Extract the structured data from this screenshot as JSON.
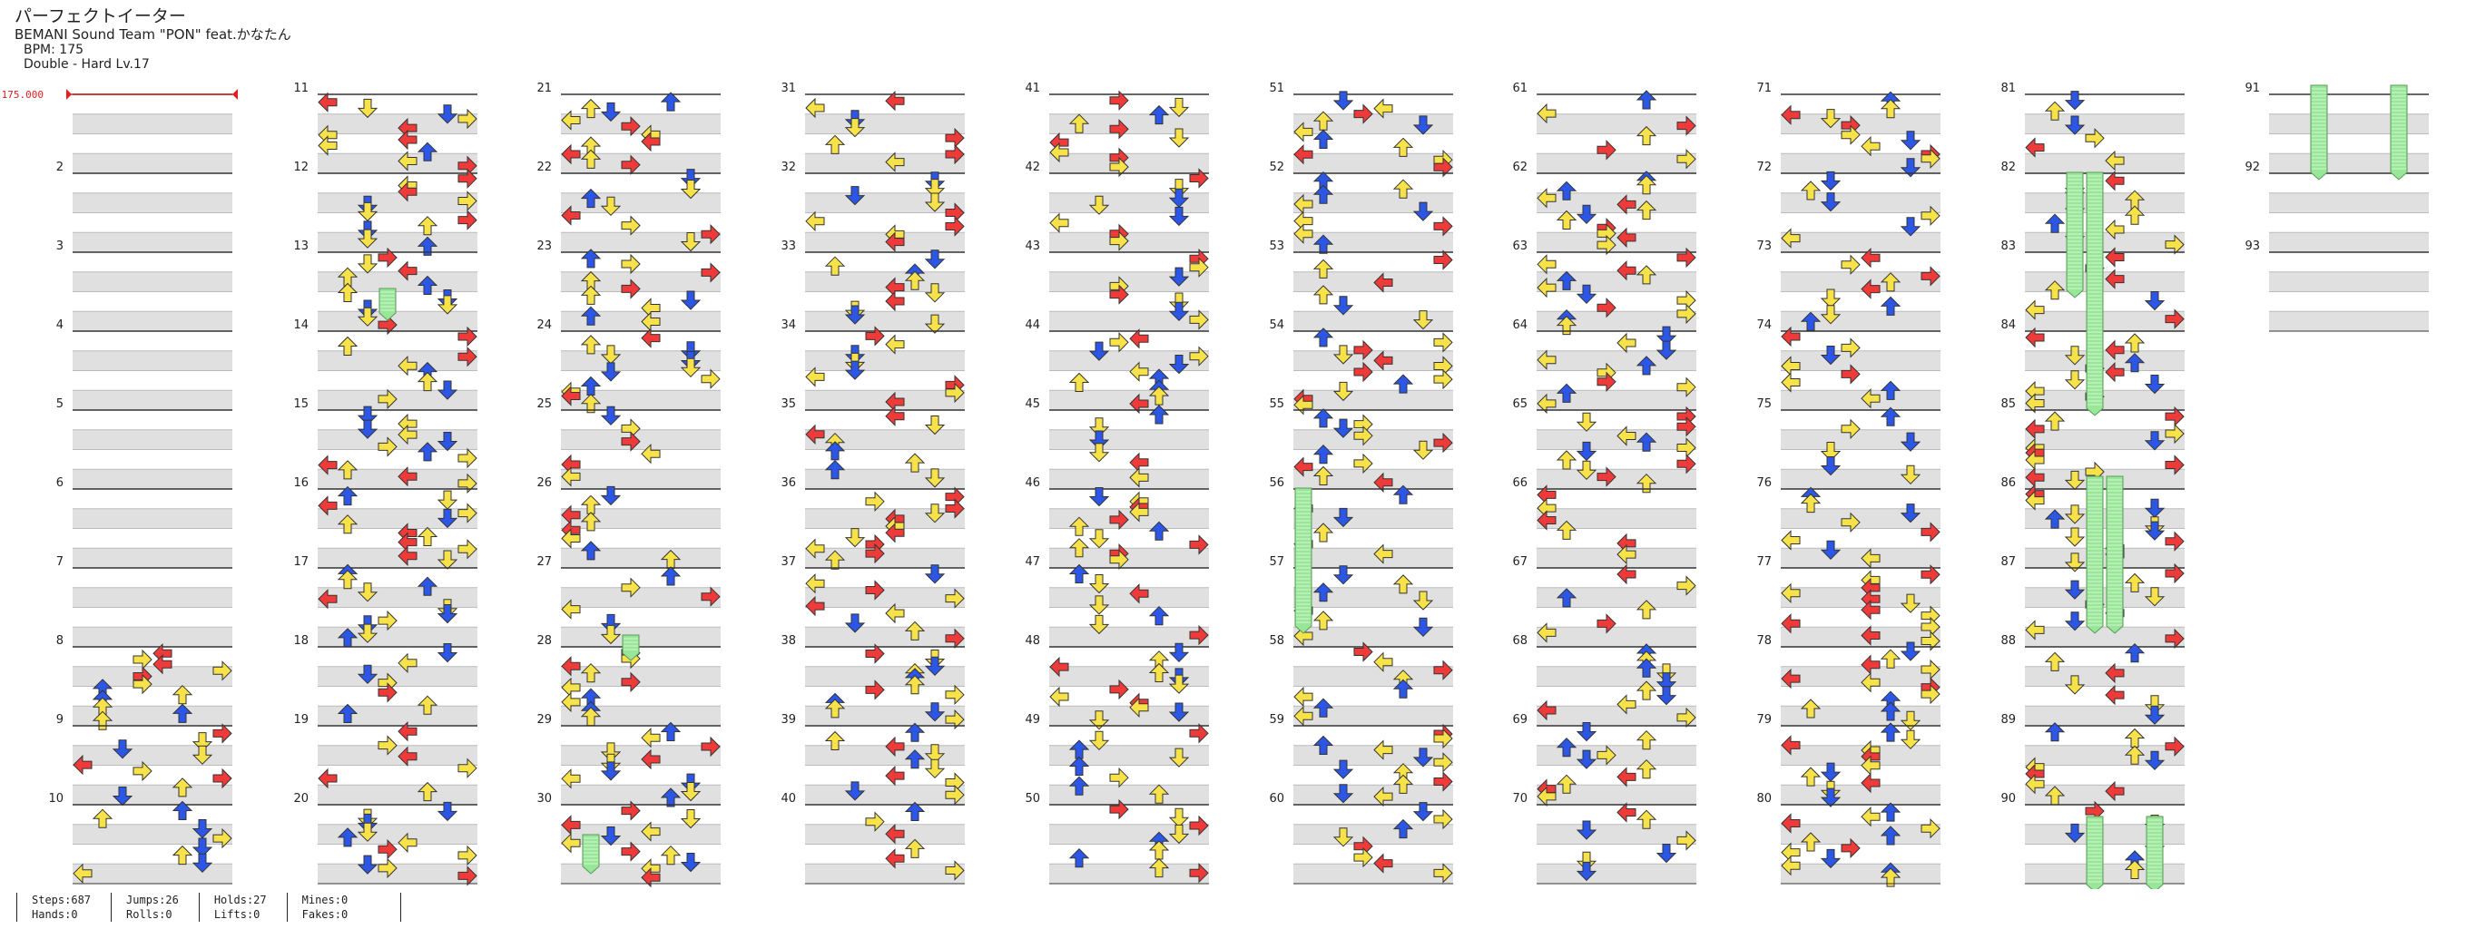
{
  "song": {
    "title": "パーフェクトイーター",
    "artist": "BEMANI Sound Team \"PON\" feat.かなたん",
    "bpm_label": "BPM: 175",
    "chart_label": "Double - Hard Lv.17"
  },
  "bpm_marker": "175.000",
  "columns": [
    {
      "start": 1,
      "labels": [
        "",
        "2",
        "3",
        "4",
        "5",
        "6",
        "7",
        "8",
        "9",
        "10"
      ]
    },
    {
      "start": 11,
      "labels": [
        "11",
        "12",
        "13",
        "14",
        "15",
        "16",
        "17",
        "18",
        "19",
        "20"
      ]
    },
    {
      "start": 21,
      "labels": [
        "21",
        "22",
        "23",
        "24",
        "25",
        "26",
        "27",
        "28",
        "29",
        "30"
      ]
    },
    {
      "start": 31,
      "labels": [
        "31",
        "32",
        "33",
        "34",
        "35",
        "36",
        "37",
        "38",
        "39",
        "40"
      ]
    },
    {
      "start": 41,
      "labels": [
        "41",
        "42",
        "43",
        "44",
        "45",
        "46",
        "47",
        "48",
        "49",
        "50"
      ]
    },
    {
      "start": 51,
      "labels": [
        "51",
        "52",
        "53",
        "54",
        "55",
        "56",
        "57",
        "58",
        "59",
        "60"
      ]
    },
    {
      "start": 61,
      "labels": [
        "61",
        "62",
        "63",
        "64",
        "65",
        "66",
        "67",
        "68",
        "69",
        "70"
      ]
    },
    {
      "start": 71,
      "labels": [
        "71",
        "72",
        "73",
        "74",
        "75",
        "76",
        "77",
        "78",
        "79",
        "80"
      ]
    },
    {
      "start": 81,
      "labels": [
        "81",
        "82",
        "83",
        "84",
        "85",
        "86",
        "87",
        "88",
        "89",
        "90"
      ]
    },
    {
      "start": 91,
      "labels": [
        "91",
        "92",
        "93"
      ]
    }
  ],
  "colors": {
    "red": "#ef3a3a",
    "blue": "#2c57e6",
    "yellow": "#f8e24a",
    "purple": "#b44ae8",
    "hold": "#98e698",
    "stripe": "#e0e0e0",
    "bpm": "#e02020"
  },
  "stats": {
    "steps": "Steps:687",
    "hands": "Hands:0",
    "jumps": "Jumps:26",
    "rolls": "Rolls:0",
    "holds": "Holds:27",
    "lifts": "Lifts:0",
    "mines": "Mines:0",
    "fakes": "Fakes:0"
  }
}
